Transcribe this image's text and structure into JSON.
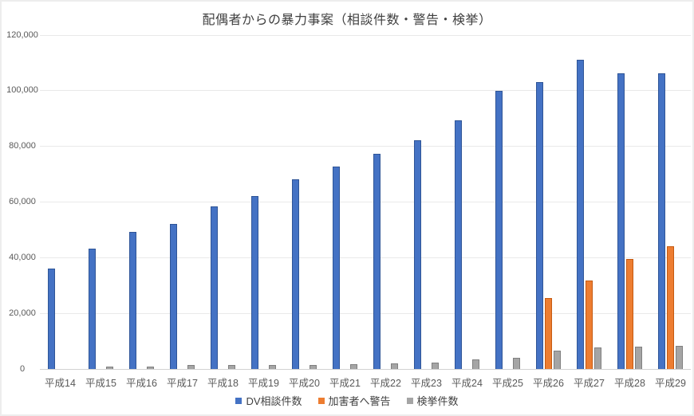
{
  "title": "配偶者からの暴力事案（相談件数・警告・検挙）",
  "chart_data": {
    "type": "bar",
    "title": "配偶者からの暴力事案（相談件数・警告・検挙）",
    "categories": [
      "平成14",
      "平成15",
      "平成16",
      "平成17",
      "平成18",
      "平成19",
      "平成20",
      "平成21",
      "平成22",
      "平成23",
      "平成24",
      "平成25",
      "平成26",
      "平成27",
      "平成28",
      "平成29"
    ],
    "series": [
      {
        "name": "DV相談件数",
        "color": "#4472C4",
        "border_color": "#2F5597",
        "values": [
          35943,
          43225,
          49329,
          52145,
          58528,
          62078,
          68196,
          72792,
          77334,
          82099,
          89490,
          99961,
          102963,
          111172,
          106367,
          106110
        ]
      },
      {
        "name": "加害者へ警告",
        "color": "#ED7D31",
        "border_color": "#C55A11",
        "values": [
          0,
          0,
          0,
          0,
          0,
          0,
          0,
          0,
          0,
          0,
          0,
          0,
          25500,
          31700,
          39500,
          44100
        ]
      },
      {
        "name": "検挙件数",
        "color": "#A5A5A5",
        "border_color": "#7F7F7F",
        "values": [
          0,
          1000,
          1000,
          1400,
          1400,
          1400,
          1400,
          1600,
          2100,
          2200,
          3400,
          4000,
          6700,
          7800,
          8100,
          8300
        ]
      }
    ],
    "xlabel": "",
    "ylabel": "",
    "ylim": [
      0,
      120000
    ],
    "ytick_step": 20000,
    "ytick_labels": [
      "0",
      "20,000",
      "40,000",
      "60,000",
      "80,000",
      "100,000",
      "120,000"
    ],
    "grid": true,
    "legend_position": "bottom"
  },
  "colors": {
    "title_text": "#3f3f3f",
    "axis_text": "#595959",
    "gridline": "#e9e9e9",
    "axis_line": "#d2d2d2",
    "frame_border": "#ededed"
  }
}
